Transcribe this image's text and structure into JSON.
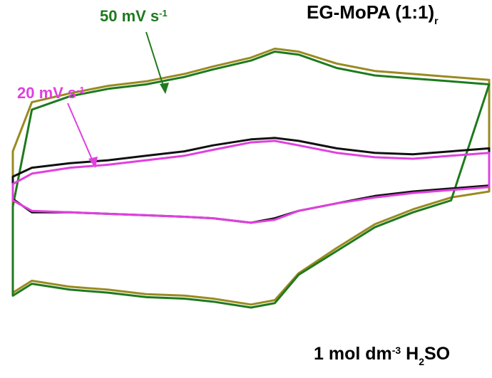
{
  "chart_data": {
    "type": "line",
    "title": "EG-MoPA (1:1)",
    "title_subscript": "r",
    "electrolyte": {
      "prefix": "1 mol dm",
      "exponent": "-3",
      "middle": " H",
      "subscript": "2",
      "suffix": "SO"
    },
    "annotations": [
      {
        "text": "50 mV s",
        "superscript": "-1",
        "color": "#1e7a1e"
      },
      {
        "text": "20 mV s",
        "superscript": "-1",
        "color": "#e040e0"
      }
    ],
    "axes_visible": false,
    "grid": false,
    "xlim": [
      0,
      1
    ],
    "ylim": [
      -1,
      1
    ],
    "series": [
      {
        "color": "#9a8a20",
        "x": [
          0.0,
          0.04,
          0.12,
          0.2,
          0.28,
          0.36,
          0.42,
          0.5,
          0.55,
          0.6,
          0.68,
          0.76,
          0.84,
          0.92,
          1.0
        ],
        "upper": [
          0.27,
          0.6,
          0.66,
          0.71,
          0.74,
          0.79,
          0.84,
          0.9,
          0.96,
          0.94,
          0.86,
          0.81,
          0.79,
          0.77,
          0.75
        ],
        "lower": [
          -0.68,
          -0.6,
          -0.64,
          -0.66,
          -0.69,
          -0.7,
          -0.72,
          -0.76,
          -0.73,
          -0.55,
          -0.38,
          -0.22,
          -0.12,
          -0.04,
          0.0
        ]
      },
      {
        "color": "#1e7a1e",
        "x": [
          0.0,
          0.04,
          0.12,
          0.2,
          0.28,
          0.36,
          0.42,
          0.5,
          0.55,
          0.6,
          0.68,
          0.76,
          0.84,
          0.92,
          1.0
        ],
        "upper": [
          -0.1,
          0.55,
          0.64,
          0.69,
          0.72,
          0.77,
          0.82,
          0.88,
          0.94,
          0.92,
          0.83,
          0.78,
          0.76,
          0.74,
          0.72
        ],
        "lower": [
          -0.7,
          -0.62,
          -0.66,
          -0.68,
          -0.71,
          -0.72,
          -0.74,
          -0.78,
          -0.75,
          -0.56,
          -0.4,
          -0.24,
          -0.14,
          -0.06,
          0.72
        ]
      },
      {
        "color": "#111111",
        "x": [
          0.0,
          0.04,
          0.12,
          0.2,
          0.28,
          0.36,
          0.42,
          0.5,
          0.55,
          0.6,
          0.68,
          0.76,
          0.84,
          0.92,
          1.0
        ],
        "upper": [
          0.1,
          0.16,
          0.19,
          0.21,
          0.24,
          0.27,
          0.31,
          0.35,
          0.36,
          0.34,
          0.29,
          0.26,
          0.25,
          0.27,
          0.29
        ],
        "lower": [
          -0.05,
          -0.14,
          -0.14,
          -0.15,
          -0.16,
          -0.17,
          -0.18,
          -0.21,
          -0.18,
          -0.13,
          -0.08,
          -0.03,
          0.0,
          0.02,
          0.04
        ]
      },
      {
        "color": "#e040e0",
        "x": [
          0.0,
          0.04,
          0.12,
          0.2,
          0.28,
          0.36,
          0.42,
          0.5,
          0.55,
          0.6,
          0.68,
          0.76,
          0.84,
          0.92,
          1.0
        ],
        "upper": [
          0.05,
          0.12,
          0.16,
          0.18,
          0.21,
          0.24,
          0.28,
          0.33,
          0.34,
          0.31,
          0.26,
          0.23,
          0.22,
          0.24,
          0.26
        ],
        "lower": [
          -0.06,
          -0.13,
          -0.14,
          -0.15,
          -0.16,
          -0.17,
          -0.18,
          -0.21,
          -0.19,
          -0.13,
          -0.08,
          -0.04,
          -0.01,
          0.01,
          0.03
        ]
      }
    ]
  }
}
